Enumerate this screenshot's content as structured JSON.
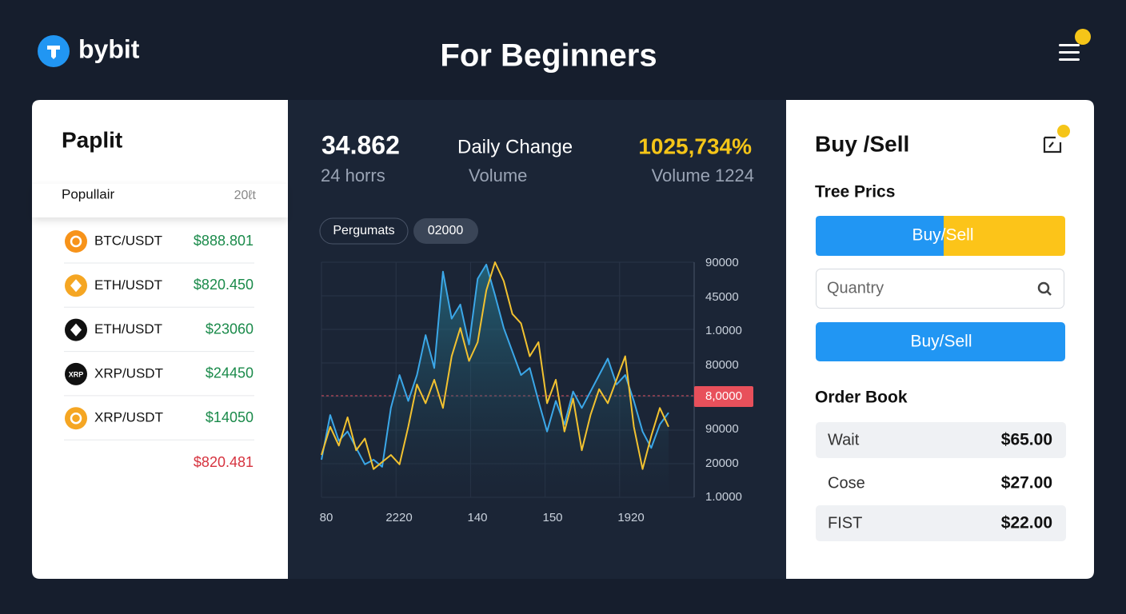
{
  "header": {
    "logo": "bybit",
    "title": "For Beginners"
  },
  "left_panel": {
    "title": "Paplit",
    "tab": "Popullair",
    "tab_meta": "20ℓt",
    "pairs": [
      {
        "name": "BTC/USDT",
        "price": "$888.801"
      },
      {
        "name": "ETH/USDT",
        "price": "$820.450"
      },
      {
        "name": "ETH/USDT",
        "price": "$23060"
      },
      {
        "name": "XRP/USDT",
        "price": "$24450",
        "icon_label": "XRP"
      },
      {
        "name": "XRP/USDT",
        "price": "$14050"
      }
    ],
    "footer_price": "$820.481"
  },
  "stats": [
    {
      "value": "34.862",
      "label": "24 horrs"
    },
    {
      "value": "Daily Change",
      "label": "Volume"
    },
    {
      "value": "1025,734%",
      "label": "Volume 1224"
    }
  ],
  "chart": {
    "type": "line",
    "pills": [
      "Pergumats",
      "02000"
    ],
    "y_labels": [
      "90000",
      "45000",
      "1.0000",
      "80000",
      "8,0000",
      "90000",
      "20000",
      "1.0000"
    ],
    "x_labels": [
      "80",
      "2220",
      "140",
      "150",
      "1920"
    ],
    "ylim": [
      0,
      100
    ],
    "grid": true,
    "series": [
      {
        "color": "#3ba7e8",
        "values": [
          16,
          35,
          24,
          28,
          21,
          14,
          16,
          13,
          38,
          52,
          41,
          52,
          69,
          55,
          96,
          76,
          82,
          65,
          93,
          99,
          86,
          72,
          62,
          52,
          55,
          41,
          28,
          41,
          31,
          45,
          38,
          45,
          52,
          59,
          48,
          52,
          41,
          28,
          21,
          31,
          36
        ]
      },
      {
        "color": "#f2c230",
        "values": [
          18,
          30,
          22,
          34,
          20,
          25,
          12,
          15,
          18,
          14,
          30,
          48,
          40,
          50,
          38,
          60,
          72,
          58,
          66,
          88,
          100,
          92,
          78,
          74,
          60,
          66,
          40,
          50,
          28,
          42,
          20,
          35,
          46,
          40,
          50,
          60,
          30,
          12,
          26,
          38,
          30
        ]
      }
    ]
  },
  "right_panel": {
    "title": "Buy /Sell",
    "subtitle": "Tree Prics",
    "split_button": "Buy/Sell",
    "input_placeholder": "Quantry",
    "button": "Buy/Sell",
    "order_book_title": "Order Book",
    "order_book": [
      {
        "label": "Wait",
        "price": "$65.00"
      },
      {
        "label": "Cose",
        "price": "$27.00"
      },
      {
        "label": "FIST",
        "price": "$22.00"
      }
    ]
  }
}
